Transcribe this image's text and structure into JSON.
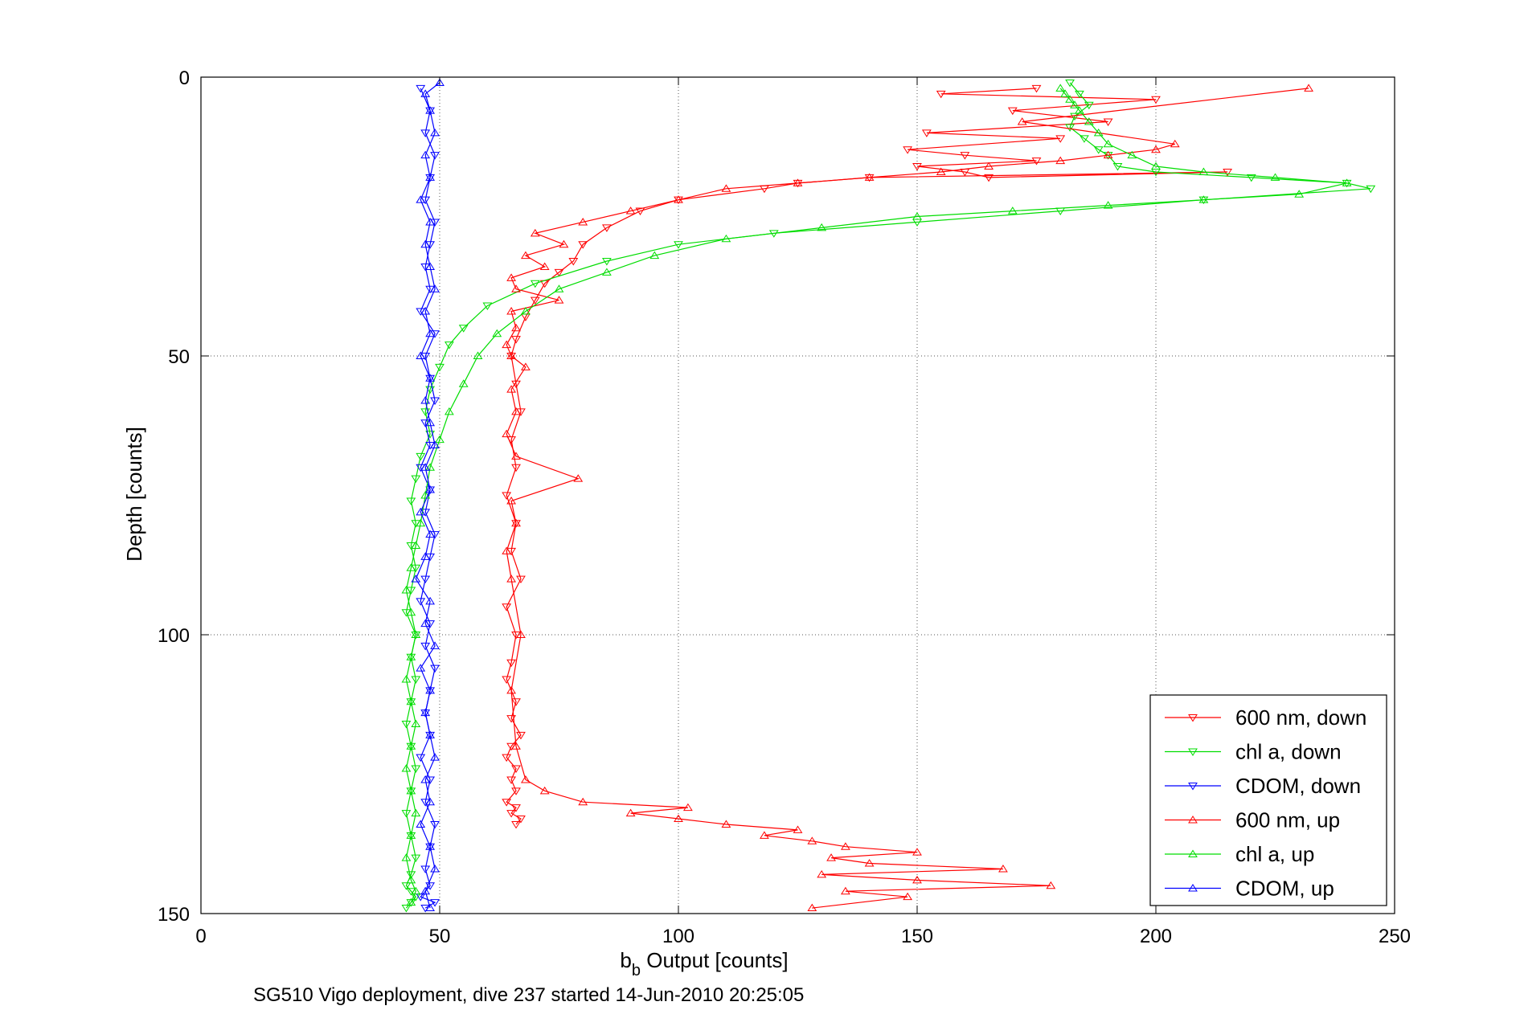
{
  "chart_data": {
    "type": "line",
    "xlabel_main": "b",
    "xlabel_sub": "b",
    "xlabel_rest": " Output [counts]",
    "ylabel": "Depth [counts]",
    "caption": "SG510 Vigo deployment, dive 237 started 14-Jun-2010 20:25:05",
    "xlim": [
      0,
      250
    ],
    "ylim": [
      0,
      150
    ],
    "y_reversed": true,
    "grid": true,
    "legend_position": "bottom-right",
    "xticks": [
      0,
      50,
      100,
      150,
      200,
      250
    ],
    "xtick_labels": [
      "0",
      "50",
      "100",
      "150",
      "200",
      "250"
    ],
    "yticks": [
      0,
      50,
      100,
      150
    ],
    "ytick_labels": [
      "0",
      "50",
      "100",
      "150"
    ],
    "series": [
      {
        "name": "600 nm, down",
        "color": "#ff0000",
        "marker": "triangle-down",
        "x": [
          175,
          155,
          200,
          170,
          190,
          152,
          180,
          148,
          160,
          175,
          150,
          160,
          165,
          215,
          140,
          125,
          118,
          100,
          92,
          85,
          80,
          78,
          75,
          72,
          70,
          68,
          66,
          65,
          66,
          67,
          65,
          66,
          64,
          66,
          65,
          67,
          64,
          66,
          65,
          64,
          66,
          65,
          67,
          65,
          64,
          66,
          65,
          66,
          64,
          66,
          65,
          67,
          66
        ],
        "y": [
          2,
          3,
          4,
          6,
          8,
          10,
          11,
          13,
          14,
          15,
          16,
          17,
          18,
          17,
          18,
          19,
          20,
          22,
          24,
          27,
          30,
          33,
          35,
          37,
          40,
          43,
          47,
          50,
          55,
          60,
          65,
          70,
          75,
          80,
          85,
          90,
          95,
          100,
          105,
          108,
          112,
          115,
          118,
          120,
          122,
          124,
          126,
          128,
          130,
          131,
          132,
          133,
          134
        ]
      },
      {
        "name": "chl a, down",
        "color": "#00dd00",
        "marker": "triangle-down",
        "x": [
          182,
          184,
          186,
          183,
          182,
          185,
          188,
          190,
          192,
          200,
          220,
          240,
          245,
          210,
          180,
          150,
          120,
          100,
          85,
          70,
          60,
          55,
          52,
          50,
          48,
          47,
          48,
          46,
          45,
          44,
          45,
          44,
          45,
          44,
          43,
          45,
          44,
          45,
          44,
          43,
          44,
          45,
          44,
          43,
          44,
          45,
          44,
          43,
          44,
          45,
          44,
          43
        ],
        "y": [
          1,
          3,
          5,
          7,
          9,
          11,
          13,
          14,
          16,
          17,
          18,
          19,
          20,
          22,
          24,
          26,
          28,
          30,
          33,
          37,
          41,
          45,
          48,
          52,
          56,
          60,
          64,
          68,
          72,
          76,
          80,
          84,
          88,
          92,
          96,
          100,
          104,
          108,
          112,
          116,
          120,
          124,
          128,
          132,
          136,
          140,
          143,
          145,
          146,
          147,
          148,
          149
        ]
      },
      {
        "name": "CDOM, down",
        "color": "#0000ff",
        "marker": "triangle-down",
        "x": [
          46,
          48,
          47,
          49,
          48,
          47,
          49,
          48,
          47,
          48,
          46,
          49,
          47,
          48,
          49,
          47,
          48,
          46,
          48,
          47,
          49,
          48,
          47,
          46,
          48,
          47,
          49,
          48,
          47,
          48,
          46,
          48,
          47,
          49,
          48,
          47,
          48,
          46,
          49,
          47
        ],
        "y": [
          2,
          6,
          10,
          14,
          18,
          22,
          26,
          30,
          34,
          38,
          42,
          46,
          50,
          54,
          58,
          62,
          66,
          70,
          74,
          78,
          82,
          86,
          90,
          94,
          98,
          102,
          106,
          110,
          114,
          118,
          122,
          126,
          130,
          134,
          138,
          142,
          145,
          147,
          148,
          149
        ]
      },
      {
        "name": "600 nm, up",
        "color": "#ff0000",
        "marker": "triangle-up",
        "x": [
          128,
          148,
          135,
          178,
          150,
          130,
          168,
          140,
          132,
          150,
          135,
          128,
          118,
          125,
          110,
          100,
          90,
          102,
          80,
          72,
          68,
          66,
          65,
          67,
          65,
          64,
          66,
          65,
          79,
          66,
          64,
          66,
          65,
          68,
          65,
          64,
          66,
          65,
          75,
          66,
          65,
          72,
          68,
          76,
          70,
          80,
          90,
          100,
          110,
          125,
          140,
          155,
          165,
          180,
          190,
          200,
          204,
          172,
          232
        ],
        "y": [
          149,
          147,
          146,
          145,
          144,
          143,
          142,
          141,
          140,
          139,
          138,
          137,
          136,
          135,
          134,
          133,
          132,
          131,
          130,
          128,
          126,
          120,
          110,
          100,
          90,
          85,
          80,
          76,
          72,
          68,
          64,
          60,
          56,
          52,
          50,
          48,
          45,
          42,
          40,
          38,
          36,
          34,
          32,
          30,
          28,
          26,
          24,
          22,
          20,
          19,
          18,
          17,
          16,
          15,
          14,
          13,
          12,
          8,
          2
        ]
      },
      {
        "name": "chl a, up",
        "color": "#00dd00",
        "marker": "triangle-up",
        "x": [
          44,
          45,
          44,
          43,
          44,
          45,
          44,
          43,
          44,
          45,
          44,
          43,
          44,
          45,
          44,
          43,
          44,
          45,
          46,
          47,
          48,
          50,
          52,
          55,
          58,
          62,
          68,
          75,
          85,
          95,
          110,
          130,
          150,
          170,
          190,
          210,
          230,
          240,
          225,
          210,
          200,
          195,
          190,
          188,
          186,
          184,
          183,
          182,
          181,
          180
        ],
        "y": [
          148,
          146,
          144,
          140,
          136,
          132,
          128,
          124,
          120,
          116,
          112,
          108,
          104,
          100,
          96,
          92,
          88,
          84,
          80,
          75,
          70,
          65,
          60,
          55,
          50,
          46,
          42,
          38,
          35,
          32,
          29,
          27,
          25,
          24,
          23,
          22,
          21,
          19,
          18,
          17,
          16,
          14,
          12,
          10,
          8,
          6,
          5,
          4,
          3,
          2
        ]
      },
      {
        "name": "CDOM, up",
        "color": "#0000ff",
        "marker": "triangle-up",
        "x": [
          48,
          47,
          49,
          48,
          46,
          48,
          47,
          49,
          48,
          47,
          48,
          46,
          49,
          47,
          48,
          45,
          47,
          48,
          46,
          48,
          47,
          49,
          48,
          47,
          48,
          46,
          48,
          47,
          49,
          48,
          47,
          48,
          46,
          48,
          47,
          49,
          48,
          47,
          50
        ],
        "y": [
          149,
          146,
          142,
          138,
          134,
          130,
          126,
          122,
          118,
          114,
          110,
          106,
          102,
          98,
          94,
          90,
          86,
          82,
          78,
          74,
          70,
          66,
          62,
          58,
          54,
          50,
          46,
          42,
          38,
          34,
          30,
          26,
          22,
          18,
          14,
          10,
          6,
          3,
          1
        ]
      }
    ]
  }
}
